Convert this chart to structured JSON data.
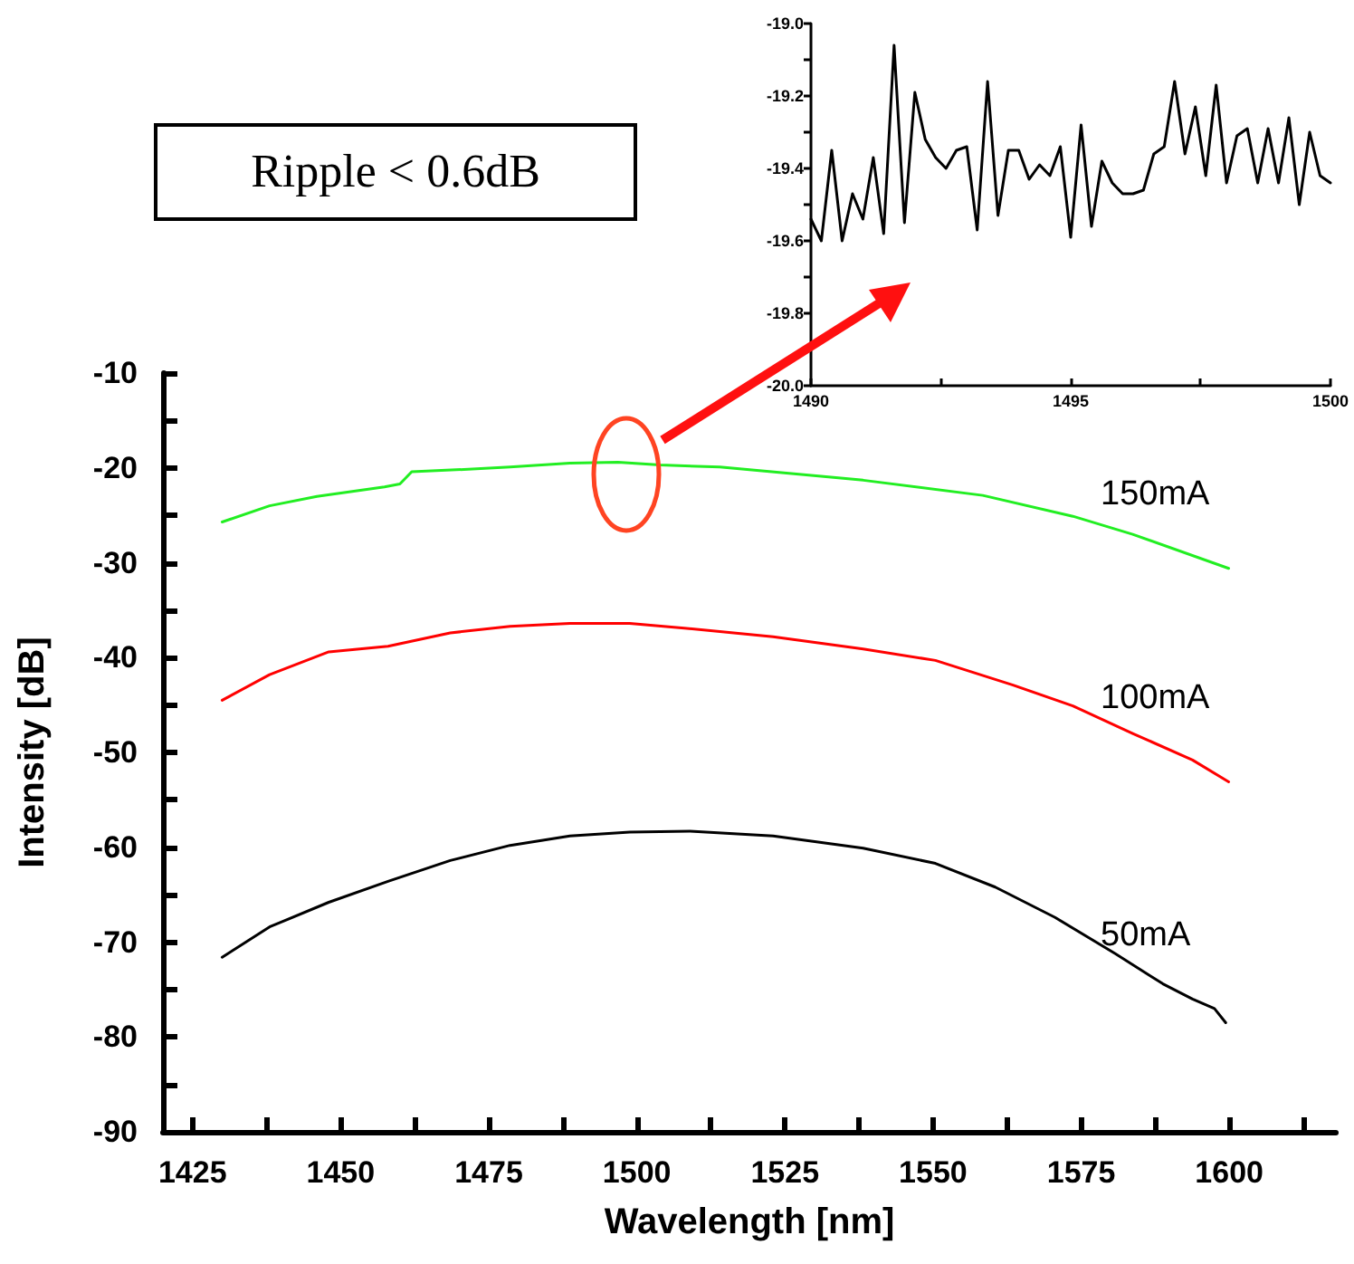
{
  "chart_data": [
    {
      "type": "line",
      "xlabel": "Wavelength [nm]",
      "ylabel": "Intensity [dB]",
      "annotations": [
        "Ripple < 0.6dB"
      ],
      "xlim": [
        1420,
        1618
      ],
      "ylim": [
        -90,
        -10
      ],
      "xticks": [
        1425,
        {
          "value": 1437.5,
          "label": null
        },
        1450,
        {
          "value": 1462.5,
          "label": null
        },
        1475,
        {
          "value": 1487.5,
          "label": null
        },
        1500,
        {
          "value": 1512.5,
          "label": null
        },
        1525,
        {
          "value": 1537.5,
          "label": null
        },
        1550,
        {
          "value": 1562.5,
          "label": null
        },
        1575,
        {
          "value": 1587.5,
          "label": null
        },
        1600,
        {
          "value": 1612.5,
          "label": null
        }
      ],
      "yticks": [
        -90,
        {
          "value": -85,
          "label": null
        },
        -80,
        {
          "value": -75,
          "label": null
        },
        -70,
        {
          "value": -65,
          "label": null
        },
        -60,
        {
          "value": -55,
          "label": null
        },
        -50,
        {
          "value": -45,
          "label": null
        },
        -40,
        {
          "value": -35,
          "label": null
        },
        -30,
        {
          "value": -25,
          "label": null
        },
        -20,
        {
          "value": -15,
          "label": null
        },
        -10
      ],
      "grid": false,
      "legend": false,
      "marker": "none",
      "line_style": "solid",
      "series": [
        {
          "name": "150mA",
          "color": "#22ee22",
          "x": [
            1430,
            1438,
            1446,
            1457.4,
            1460,
            1462,
            1469.5,
            1478.6,
            1488.7,
            1496.8,
            1503.9,
            1514,
            1538.2,
            1558.4,
            1573.6,
            1583.7,
            1599.9
          ],
          "values": [
            -25.7,
            -24.0,
            -23.0,
            -22.0,
            -21.7,
            -20.4,
            -20.2,
            -19.9,
            -19.5,
            -19.4,
            -19.7,
            -19.9,
            -21.3,
            -22.9,
            -25.1,
            -27.0,
            -30.6
          ]
        },
        {
          "name": "100mA",
          "color": "#ff0000",
          "x": [
            1430,
            1438,
            1448,
            1458,
            1468.5,
            1478.6,
            1488.7,
            1498.8,
            1508,
            1523,
            1538.2,
            1550.4,
            1563.5,
            1573.6,
            1583.7,
            1593.8,
            1599.9
          ],
          "values": [
            -44.5,
            -41.8,
            -39.4,
            -38.8,
            -37.4,
            -36.7,
            -36.4,
            -36.4,
            -36.9,
            -37.8,
            -39.1,
            -40.3,
            -42.9,
            -45.1,
            -48.0,
            -50.8,
            -53.1
          ]
        },
        {
          "name": "50mA",
          "color": "#000000",
          "x": [
            1430,
            1438,
            1448,
            1458,
            1468.5,
            1478.6,
            1488.7,
            1498.8,
            1509,
            1523,
            1538.2,
            1550.4,
            1560.5,
            1570.6,
            1580.7,
            1588.8,
            1593.8,
            1597.5,
            1599.4
          ],
          "values": [
            -71.6,
            -68.4,
            -65.8,
            -63.6,
            -61.4,
            -59.8,
            -58.8,
            -58.4,
            -58.3,
            -58.8,
            -60.1,
            -61.7,
            -64.2,
            -67.4,
            -71.2,
            -74.4,
            -76.0,
            -77.0,
            -78.5
          ]
        }
      ]
    },
    {
      "type": "line",
      "xlim": [
        1490,
        1500
      ],
      "ylim": [
        -20,
        -19
      ],
      "xticks": [
        1490,
        {
          "value": 1492.5,
          "label": null
        },
        1495,
        {
          "value": 1497.5,
          "label": null
        },
        1500
      ],
      "yticks": [
        {
          "value": -20,
          "label": "-20.0"
        },
        {
          "value": -19.9,
          "label": null
        },
        -19.8,
        {
          "value": -19.7,
          "label": null
        },
        -19.6,
        {
          "value": -19.5,
          "label": null
        },
        -19.4,
        {
          "value": -19.3,
          "label": null
        },
        -19.2,
        {
          "value": -19.1,
          "label": null
        },
        {
          "value": -19,
          "label": "-19.0"
        }
      ],
      "grid": false,
      "legend": false,
      "marker": "none",
      "line_style": "solid",
      "series": [
        {
          "color": "#000000",
          "x": [
            1490,
            1490.2,
            1490.4,
            1490.6,
            1490.8,
            1491,
            1491.2,
            1491.4,
            1491.6,
            1491.8,
            1492,
            1492.2,
            1492.4,
            1492.6,
            1492.8,
            1493,
            1493.2,
            1493.4,
            1493.6,
            1493.8,
            1494,
            1494.2,
            1494.4,
            1494.6,
            1494.8,
            1495,
            1495.2,
            1495.4,
            1495.6,
            1495.8,
            1496,
            1496.2,
            1496.4,
            1496.6,
            1496.8,
            1497,
            1497.2,
            1497.4,
            1497.6,
            1497.8,
            1498,
            1498.2,
            1498.4,
            1498.6,
            1498.8,
            1499,
            1499.2,
            1499.4,
            1499.6,
            1499.8,
            1500
          ],
          "values": [
            -19.54,
            -19.6,
            -19.35,
            -19.6,
            -19.47,
            -19.54,
            -19.37,
            -19.58,
            -19.06,
            -19.55,
            -19.19,
            -19.32,
            -19.37,
            -19.4,
            -19.35,
            -19.34,
            -19.57,
            -19.16,
            -19.53,
            -19.35,
            -19.35,
            -19.43,
            -19.39,
            -19.42,
            -19.34,
            -19.59,
            -19.28,
            -19.56,
            -19.38,
            -19.44,
            -19.47,
            -19.47,
            -19.46,
            -19.36,
            -19.34,
            -19.16,
            -19.36,
            -19.23,
            -19.42,
            -19.17,
            -19.44,
            -19.31,
            -19.29,
            -19.44,
            -19.29,
            -19.44,
            -19.26,
            -19.5,
            -19.3,
            -19.42,
            -19.44
          ]
        }
      ]
    }
  ]
}
